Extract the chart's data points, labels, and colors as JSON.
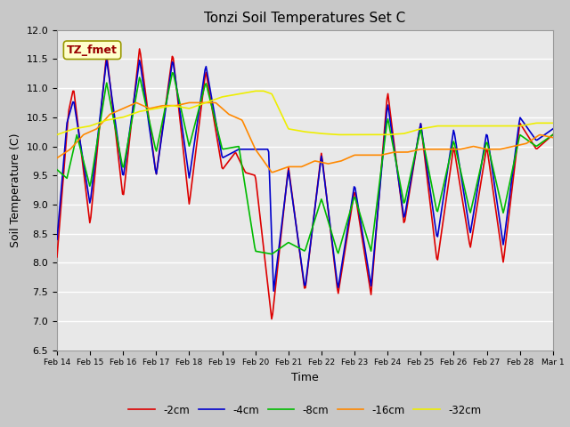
{
  "title": "Tonzi Soil Temperatures Set C",
  "xlabel": "Time",
  "ylabel": "Soil Temperature (C)",
  "ylim": [
    6.5,
    12.0
  ],
  "fig_bg_color": "#c8c8c8",
  "plot_bg_color": "#e8e8e8",
  "annotation_text": "TZ_fmet",
  "annotation_bg": "#ffffcc",
  "annotation_border": "#999900",
  "annotation_text_color": "#990000",
  "colors": {
    "-2cm": "#dd0000",
    "-4cm": "#0000cc",
    "-8cm": "#00bb00",
    "-16cm": "#ff8800",
    "-32cm": "#eeee00"
  },
  "line_width": 1.2,
  "xtick_labels": [
    "Feb 14",
    "Feb 15",
    "Feb 16",
    "Feb 17",
    "Feb 18",
    "Feb 19",
    "Feb 20",
    "Feb 21",
    "Feb 22",
    "Feb 23",
    "Feb 24",
    "Feb 25",
    "Feb 26",
    "Feb 27",
    "Feb 28",
    "Mar 1"
  ],
  "ytick_labels": [
    "6.5",
    "7.0",
    "7.5",
    "8.0",
    "8.5",
    "9.0",
    "9.5",
    "10.0",
    "10.5",
    "11.0",
    "11.5",
    "12.0"
  ],
  "t_2cm": [
    0,
    0.35,
    0.5,
    1.0,
    1.5,
    2.0,
    2.5,
    3.0,
    3.5,
    4.0,
    4.5,
    5.0,
    5.4,
    5.7,
    6.0,
    6.5,
    7.0,
    7.5,
    8.0,
    8.5,
    9.0,
    9.5,
    10.0,
    10.5,
    11.0,
    11.5,
    12.0,
    12.5,
    13.0,
    13.5,
    14.0,
    14.5,
    15.0
  ],
  "v_2cm": [
    8.1,
    10.6,
    11.0,
    8.65,
    11.6,
    9.1,
    11.7,
    9.5,
    11.6,
    9.0,
    11.3,
    9.6,
    9.9,
    9.55,
    9.5,
    7.0,
    9.65,
    7.5,
    9.9,
    7.45,
    9.25,
    7.45,
    10.95,
    8.65,
    10.4,
    8.0,
    10.0,
    8.25,
    10.0,
    8.0,
    10.4,
    9.95,
    10.2
  ],
  "t_4cm": [
    0,
    0.3,
    0.5,
    1.0,
    1.5,
    2.0,
    2.5,
    3.0,
    3.5,
    4.0,
    4.5,
    5.0,
    5.5,
    6.0,
    6.4,
    6.55,
    7.0,
    7.5,
    8.0,
    8.5,
    9.0,
    9.5,
    10.0,
    10.5,
    11.0,
    11.5,
    12.0,
    12.5,
    13.0,
    13.5,
    14.0,
    14.5,
    15.0
  ],
  "v_4cm": [
    8.4,
    10.4,
    10.8,
    9.0,
    11.5,
    9.45,
    11.5,
    9.5,
    11.5,
    9.45,
    11.4,
    9.8,
    9.95,
    9.95,
    9.95,
    7.5,
    9.6,
    7.55,
    9.85,
    7.55,
    9.35,
    7.6,
    10.75,
    8.75,
    10.4,
    8.4,
    10.3,
    8.5,
    10.25,
    8.3,
    10.5,
    10.1,
    10.3
  ],
  "t_8cm": [
    0,
    0.3,
    0.6,
    1.0,
    1.5,
    2.0,
    2.5,
    3.0,
    3.5,
    4.0,
    4.5,
    5.0,
    5.5,
    6.0,
    6.5,
    7.0,
    7.5,
    8.0,
    8.5,
    9.0,
    9.5,
    10.0,
    10.5,
    11.0,
    11.5,
    12.0,
    12.5,
    13.0,
    13.5,
    14.0,
    14.5,
    15.0
  ],
  "v_8cm": [
    9.6,
    9.45,
    10.2,
    9.3,
    11.1,
    9.6,
    11.2,
    9.9,
    11.3,
    10.0,
    11.1,
    9.95,
    10.0,
    8.2,
    8.15,
    8.35,
    8.2,
    9.1,
    8.15,
    9.15,
    8.2,
    10.5,
    9.0,
    10.3,
    8.85,
    10.1,
    8.85,
    10.1,
    8.85,
    10.2,
    10.0,
    10.2
  ],
  "t_16cm": [
    0,
    0.4,
    0.8,
    1.2,
    1.6,
    2.0,
    2.4,
    2.8,
    3.2,
    3.6,
    4.0,
    4.4,
    4.8,
    5.2,
    5.6,
    6.0,
    6.5,
    7.0,
    7.4,
    7.8,
    8.2,
    8.6,
    9.0,
    9.4,
    9.8,
    10.2,
    10.6,
    11.0,
    11.4,
    11.8,
    12.2,
    12.6,
    13.0,
    13.4,
    13.8,
    14.2,
    14.6,
    15.0
  ],
  "v_16cm": [
    9.8,
    9.95,
    10.2,
    10.3,
    10.55,
    10.65,
    10.75,
    10.65,
    10.7,
    10.7,
    10.75,
    10.75,
    10.75,
    10.55,
    10.45,
    9.95,
    9.55,
    9.65,
    9.65,
    9.75,
    9.7,
    9.75,
    9.85,
    9.85,
    9.85,
    9.9,
    9.9,
    9.95,
    9.95,
    9.95,
    9.95,
    10.0,
    9.95,
    9.95,
    10.0,
    10.05,
    10.2,
    10.15
  ],
  "t_32cm": [
    0,
    0.5,
    1,
    1.5,
    2,
    2.5,
    3,
    3.5,
    4,
    4.5,
    5,
    5.5,
    6,
    6.25,
    6.5,
    7,
    7.5,
    8,
    8.5,
    9,
    9.5,
    10,
    10.5,
    11,
    11.5,
    12,
    12.5,
    13,
    13.5,
    14,
    14.5,
    15
  ],
  "v_32cm": [
    10.2,
    10.3,
    10.35,
    10.45,
    10.5,
    10.6,
    10.65,
    10.7,
    10.65,
    10.75,
    10.85,
    10.9,
    10.95,
    10.95,
    10.9,
    10.3,
    10.25,
    10.22,
    10.2,
    10.2,
    10.2,
    10.2,
    10.22,
    10.3,
    10.35,
    10.35,
    10.35,
    10.35,
    10.35,
    10.35,
    10.4,
    10.4
  ]
}
